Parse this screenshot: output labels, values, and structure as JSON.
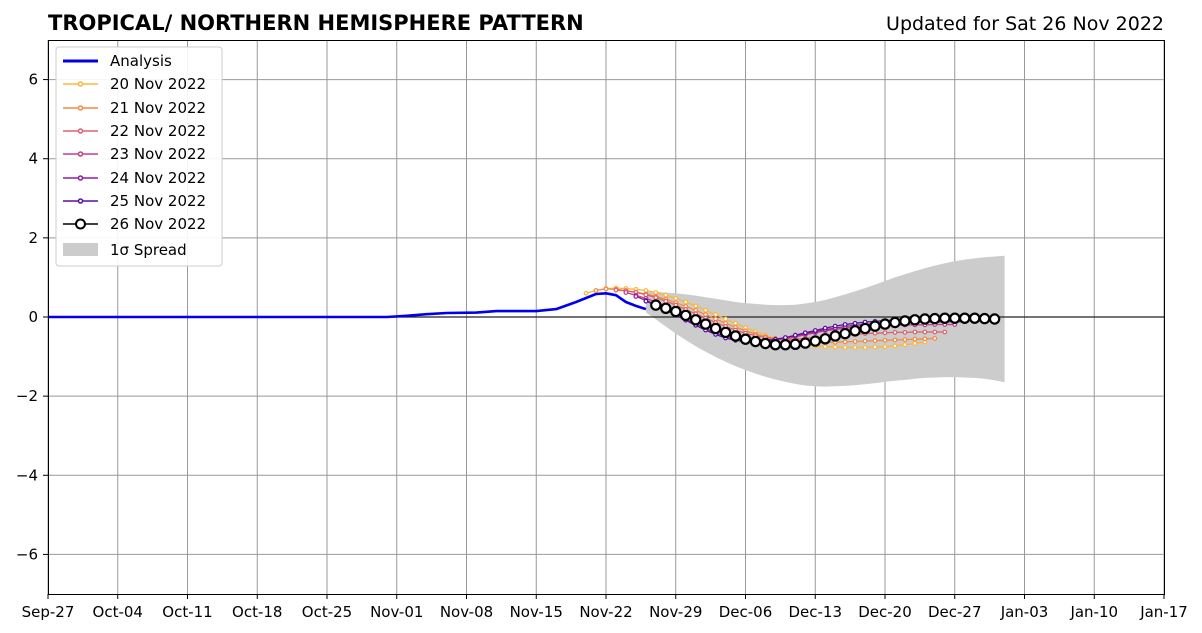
{
  "chart_data": {
    "type": "line",
    "title": "TROPICAL/ NORTHERN HEMISPHERE PATTERN",
    "subtitle": "Updated for Sat 26 Nov 2022",
    "xlabel": "",
    "ylabel": "",
    "x_range": [
      "2022-09-27",
      "2023-01-17"
    ],
    "ylim": [
      -7,
      7
    ],
    "x_ticks": [
      "Sep-27",
      "Oct-04",
      "Oct-11",
      "Oct-18",
      "Oct-25",
      "Nov-01",
      "Nov-08",
      "Nov-15",
      "Nov-22",
      "Nov-29",
      "Dec-06",
      "Dec-13",
      "Dec-20",
      "Dec-27",
      "Jan-03",
      "Jan-10",
      "Jan-17"
    ],
    "y_ticks": [
      "−6",
      "−4",
      "−2",
      "0",
      "2",
      "4",
      "6"
    ],
    "grid": true,
    "zero_line": true,
    "legend_position": "top-left",
    "analysis": {
      "name": "Analysis",
      "color": "#0000ee",
      "points": [
        [
          "2022-09-27",
          0.0
        ],
        [
          "2022-10-15",
          0.0
        ],
        [
          "2022-10-31",
          0.0
        ],
        [
          "2022-11-02",
          0.03
        ],
        [
          "2022-11-04",
          0.07
        ],
        [
          "2022-11-06",
          0.1
        ],
        [
          "2022-11-09",
          0.11
        ],
        [
          "2022-11-11",
          0.15
        ],
        [
          "2022-11-13",
          0.15
        ],
        [
          "2022-11-15",
          0.15
        ],
        [
          "2022-11-17",
          0.2
        ],
        [
          "2022-11-19",
          0.38
        ],
        [
          "2022-11-21",
          0.58
        ],
        [
          "2022-11-22",
          0.6
        ],
        [
          "2022-11-23",
          0.55
        ],
        [
          "2022-11-24",
          0.38
        ],
        [
          "2022-11-25",
          0.28
        ],
        [
          "2022-11-26",
          0.2
        ]
      ]
    },
    "forecasts": [
      {
        "name": "20 Nov 2022",
        "color": "#f9b83a",
        "start": "2022-11-20",
        "values": [
          0.6,
          0.67,
          0.72,
          0.73,
          0.72,
          0.7,
          0.67,
          0.62,
          0.55,
          0.47,
          0.38,
          0.28,
          0.17,
          0.06,
          -0.05,
          -0.16,
          -0.27,
          -0.37,
          -0.46,
          -0.54,
          -0.6,
          -0.66,
          -0.7,
          -0.73,
          -0.75,
          -0.76,
          -0.77,
          -0.77,
          -0.77,
          -0.76,
          -0.75,
          -0.73,
          -0.7,
          -0.67,
          -0.63
        ]
      },
      {
        "name": "21 Nov 2022",
        "color": "#f28a48",
        "start": "2022-11-21",
        "values": [
          0.67,
          0.71,
          0.7,
          0.67,
          0.63,
          0.58,
          0.52,
          0.45,
          0.36,
          0.27,
          0.17,
          0.06,
          -0.05,
          -0.16,
          -0.26,
          -0.35,
          -0.43,
          -0.5,
          -0.55,
          -0.59,
          -0.62,
          -0.63,
          -0.64,
          -0.64,
          -0.64,
          -0.63,
          -0.62,
          -0.61,
          -0.6,
          -0.59,
          -0.58,
          -0.57,
          -0.56,
          -0.55,
          -0.54
        ]
      },
      {
        "name": "22 Nov 2022",
        "color": "#e0606a",
        "start": "2022-11-23",
        "values": [
          0.68,
          0.66,
          0.62,
          0.56,
          0.49,
          0.4,
          0.3,
          0.19,
          0.08,
          -0.03,
          -0.14,
          -0.24,
          -0.33,
          -0.41,
          -0.47,
          -0.52,
          -0.55,
          -0.56,
          -0.56,
          -0.54,
          -0.52,
          -0.5,
          -0.48,
          -0.46,
          -0.44,
          -0.42,
          -0.41,
          -0.4,
          -0.39,
          -0.39,
          -0.38,
          -0.38,
          -0.38,
          -0.38
        ]
      },
      {
        "name": "23 Nov 2022",
        "color": "#c04088",
        "start": "2022-11-24",
        "values": [
          0.62,
          0.55,
          0.47,
          0.38,
          0.28,
          0.17,
          0.05,
          -0.07,
          -0.19,
          -0.3,
          -0.39,
          -0.47,
          -0.53,
          -0.57,
          -0.58,
          -0.57,
          -0.54,
          -0.5,
          -0.45,
          -0.4,
          -0.35,
          -0.31,
          -0.28,
          -0.26,
          -0.24,
          -0.23,
          -0.22,
          -0.21,
          -0.2,
          -0.2,
          -0.2,
          -0.19,
          -0.19,
          -0.19
        ]
      },
      {
        "name": "24 Nov 2022",
        "color": "#8f1fa0",
        "start": "2022-11-25",
        "values": [
          0.52,
          0.42,
          0.31,
          0.2,
          0.08,
          -0.05,
          -0.17,
          -0.29,
          -0.4,
          -0.49,
          -0.55,
          -0.59,
          -0.6,
          -0.59,
          -0.56,
          -0.52,
          -0.47,
          -0.42,
          -0.37,
          -0.32,
          -0.28,
          -0.24,
          -0.21,
          -0.19,
          -0.17,
          -0.16,
          -0.15,
          -0.14,
          -0.13,
          -0.13,
          -0.13,
          -0.12,
          -0.12,
          -0.12
        ]
      },
      {
        "name": "25 Nov 2022",
        "color": "#5a0fa0",
        "start": "2022-11-26",
        "values": [
          0.4,
          0.3,
          0.18,
          0.05,
          -0.08,
          -0.21,
          -0.33,
          -0.44,
          -0.53,
          -0.59,
          -0.62,
          -0.63,
          -0.61,
          -0.57,
          -0.52,
          -0.46,
          -0.4,
          -0.34,
          -0.28,
          -0.23,
          -0.19,
          -0.16,
          -0.13,
          -0.11,
          -0.09,
          -0.08,
          -0.07,
          -0.06,
          -0.06,
          -0.05,
          -0.05,
          -0.05,
          -0.05,
          -0.05
        ]
      },
      {
        "name": "26 Nov 2022",
        "color": "#000000",
        "start": "2022-11-27",
        "values": [
          0.3,
          0.22,
          0.14,
          0.04,
          -0.07,
          -0.18,
          -0.29,
          -0.39,
          -0.48,
          -0.56,
          -0.62,
          -0.67,
          -0.7,
          -0.7,
          -0.69,
          -0.66,
          -0.61,
          -0.55,
          -0.48,
          -0.42,
          -0.35,
          -0.29,
          -0.23,
          -0.18,
          -0.14,
          -0.1,
          -0.07,
          -0.05,
          -0.04,
          -0.03,
          -0.03,
          -0.03,
          -0.03,
          -0.04,
          -0.05
        ]
      }
    ],
    "spread": {
      "name": "1σ Spread",
      "color": "#cccccc",
      "start": "2022-11-26",
      "upper": [
        0.65,
        0.64,
        0.62,
        0.6,
        0.57,
        0.54,
        0.5,
        0.46,
        0.42,
        0.38,
        0.35,
        0.33,
        0.31,
        0.3,
        0.3,
        0.31,
        0.34,
        0.38,
        0.43,
        0.5,
        0.57,
        0.65,
        0.73,
        0.82,
        0.91,
        1.0,
        1.08,
        1.16,
        1.23,
        1.3,
        1.36,
        1.41,
        1.45,
        1.48,
        1.51,
        1.53,
        1.55
      ],
      "lower": [
        0.12,
        -0.06,
        -0.24,
        -0.42,
        -0.58,
        -0.74,
        -0.88,
        -1.01,
        -1.13,
        -1.24,
        -1.34,
        -1.43,
        -1.51,
        -1.58,
        -1.64,
        -1.69,
        -1.73,
        -1.75,
        -1.76,
        -1.75,
        -1.74,
        -1.72,
        -1.7,
        -1.67,
        -1.64,
        -1.61,
        -1.59,
        -1.56,
        -1.54,
        -1.53,
        -1.52,
        -1.52,
        -1.53,
        -1.54,
        -1.56,
        -1.6,
        -1.65
      ]
    }
  },
  "legend": {
    "analysis": "Analysis",
    "f20": "20 Nov 2022",
    "f21": "21 Nov 2022",
    "f22": "22 Nov 2022",
    "f23": "23 Nov 2022",
    "f24": "24 Nov 2022",
    "f25": "25 Nov 2022",
    "f26": "26 Nov 2022",
    "spread": "1σ Spread"
  }
}
